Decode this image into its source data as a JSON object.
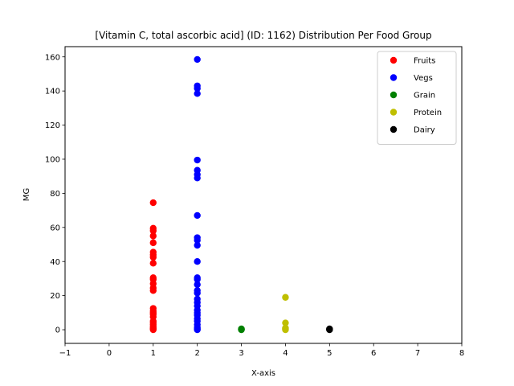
{
  "chart_data": {
    "type": "scatter",
    "title": "[Vitamin C, total ascorbic acid] (ID: 1162) Distribution Per Food Group",
    "xlabel": "X-axis",
    "ylabel": "MG",
    "xlim": [
      -1,
      8
    ],
    "ylim": [
      -8,
      166
    ],
    "xticks": [
      -1,
      0,
      1,
      2,
      3,
      4,
      5,
      6,
      7,
      8
    ],
    "yticks": [
      0,
      20,
      40,
      60,
      80,
      100,
      120,
      140,
      160
    ],
    "grid": false,
    "legend_position": "top-right",
    "series": [
      {
        "name": "Fruits",
        "color": "#ff0000",
        "x": 1,
        "values": [
          74.5,
          59.5,
          58,
          55,
          51,
          45.5,
          44,
          42.5,
          39,
          30.5,
          29.5,
          27,
          24.5,
          23,
          12.5,
          11,
          10,
          9,
          7.5,
          5,
          4,
          3,
          2,
          1,
          0.5,
          0
        ]
      },
      {
        "name": "Vegs",
        "color": "#0000ff",
        "x": 2,
        "values": [
          158.5,
          143,
          141.5,
          138.5,
          99.5,
          93.5,
          91,
          89,
          67,
          54,
          52.5,
          49.5,
          40,
          30.5,
          29.5,
          26.5,
          23,
          21.5,
          18,
          16,
          14,
          11.5,
          10,
          8.5,
          6.5,
          5,
          3,
          1.5,
          0.5,
          0
        ]
      },
      {
        "name": "Grain",
        "color": "#008000",
        "x": 3,
        "values": [
          0.5,
          0.2,
          0
        ]
      },
      {
        "name": "Protein",
        "color": "#bfbf00",
        "x": 4,
        "values": [
          19,
          4,
          1,
          0.5,
          0
        ]
      },
      {
        "name": "Dairy",
        "color": "#000000",
        "x": 5,
        "values": [
          0.5,
          0.2,
          0
        ]
      }
    ]
  }
}
